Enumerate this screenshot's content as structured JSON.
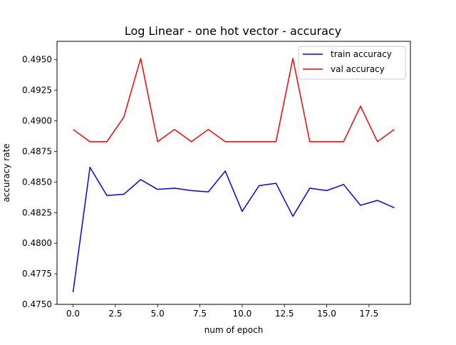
{
  "chart_data": {
    "type": "line",
    "title": "Log Linear - one hot vector - accuracy",
    "xlabel": "num of epoch",
    "ylabel": "accuracy rate",
    "xlim": [
      -0.95,
      19.95
    ],
    "ylim": [
      0.475,
      0.4965
    ],
    "xticks": [
      0.0,
      2.5,
      5.0,
      7.5,
      10.0,
      12.5,
      15.0,
      17.5
    ],
    "xtick_labels": [
      "0.0",
      "2.5",
      "5.0",
      "7.5",
      "10.0",
      "12.5",
      "15.0",
      "17.5"
    ],
    "yticks": [
      0.475,
      0.4775,
      0.48,
      0.4825,
      0.485,
      0.4875,
      0.49,
      0.4925,
      0.495
    ],
    "ytick_labels": [
      "0.4750",
      "0.4775",
      "0.4800",
      "0.4825",
      "0.4850",
      "0.4875",
      "0.4900",
      "0.4925",
      "0.4950"
    ],
    "grid": false,
    "legend_position": "top-right",
    "x": [
      0,
      1,
      2,
      3,
      4,
      5,
      6,
      7,
      8,
      9,
      10,
      11,
      12,
      13,
      14,
      15,
      16,
      17,
      18,
      19
    ],
    "series": [
      {
        "name": "train accuracy",
        "color": "#0000ff",
        "values": [
          0.476,
          0.4862,
          0.4839,
          0.484,
          0.4852,
          0.4844,
          0.4845,
          0.4843,
          0.4842,
          0.4859,
          0.4826,
          0.4847,
          0.4849,
          0.4822,
          0.4845,
          0.4843,
          0.4848,
          0.4831,
          0.4835,
          0.4829
        ]
      },
      {
        "name": "val accuracy",
        "color": "#ff0000",
        "values": [
          0.4893,
          0.4883,
          0.4883,
          0.4903,
          0.4951,
          0.4883,
          0.4893,
          0.4883,
          0.4893,
          0.4883,
          0.4883,
          0.4883,
          0.4883,
          0.4951,
          0.4883,
          0.4883,
          0.4883,
          0.4912,
          0.4883,
          0.4893
        ]
      }
    ]
  }
}
